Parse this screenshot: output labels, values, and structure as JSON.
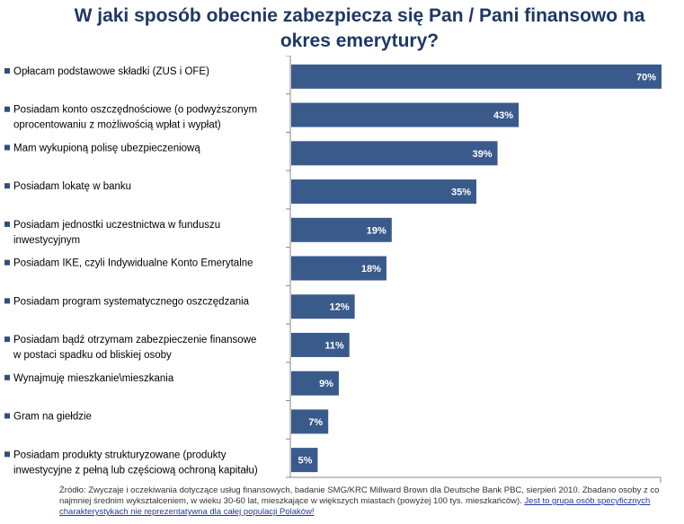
{
  "title": "W jaki sposób obecnie zabezpiecza się Pan / Pani finansowo na okres emerytury?",
  "colors": {
    "bar": "#3A5A8C",
    "bar_label": "#ffffff",
    "axis": "#888888",
    "title": "#1f3864",
    "bullet": "#2f4f7f"
  },
  "chart_data": {
    "type": "bar",
    "orientation": "horizontal",
    "title": "W jaki sposób obecnie zabezpiecza się Pan / Pani finansowo na okres emerytury?",
    "xlabel": "",
    "ylabel": "",
    "xlim": [
      0,
      70
    ],
    "grid": false,
    "legend": "none",
    "value_suffix": "%",
    "categories": [
      [
        "Opłacam podstawowe składki (ZUS i OFE)"
      ],
      [
        "Posiadam konto oszczędnościowe (o podwyższonym",
        "oprocentowaniu z możliwością wpłat i wypłat)"
      ],
      [
        "Mam wykupioną polisę ubezpieczeniową"
      ],
      [
        "Posiadam lokatę w banku"
      ],
      [
        "Posiadam jednostki uczestnictwa w funduszu",
        "inwestycyjnym"
      ],
      [
        "Posiadam IKE, czyli Indywidualne Konto Emerytalne"
      ],
      [
        "Posiadam program systematycznego oszczędzania"
      ],
      [
        "Posiadam bądź otrzymam zabezpieczenie finansowe",
        "w postaci spadku od bliskiej osoby"
      ],
      [
        "Wynajmuję mieszkanie\\mieszkania"
      ],
      [
        "Gram na giełdzie"
      ],
      [
        "Posiadam produkty strukturyzowane (produkty",
        "inwestycyjne z pełną lub częściową ochroną kapitału)"
      ]
    ],
    "values": [
      70,
      43,
      39,
      35,
      19,
      18,
      12,
      11,
      9,
      7,
      5
    ],
    "data_labels": [
      "70%",
      "43%",
      "39%",
      "35%",
      "19%",
      "18%",
      "12%",
      "11%",
      "9%",
      "7%",
      "5%"
    ]
  },
  "source": {
    "text": "Źródło: Zwyczaje i oczekiwania dotyczące usług finansowych, badanie SMG/KRC Millward Brown dla Deutsche Bank PBC, sierpień 2010. Zbadano osoby z co najmniej średnim wykształceniem, w wieku 30-60 lat, mieszkające w większych miastach (powyżej 100 tys. mieszkańców).",
    "highlight": "Jest to grupa osób specyficznych charakterystykach nie reprezentatywna dla całej populacji Polaków!"
  }
}
